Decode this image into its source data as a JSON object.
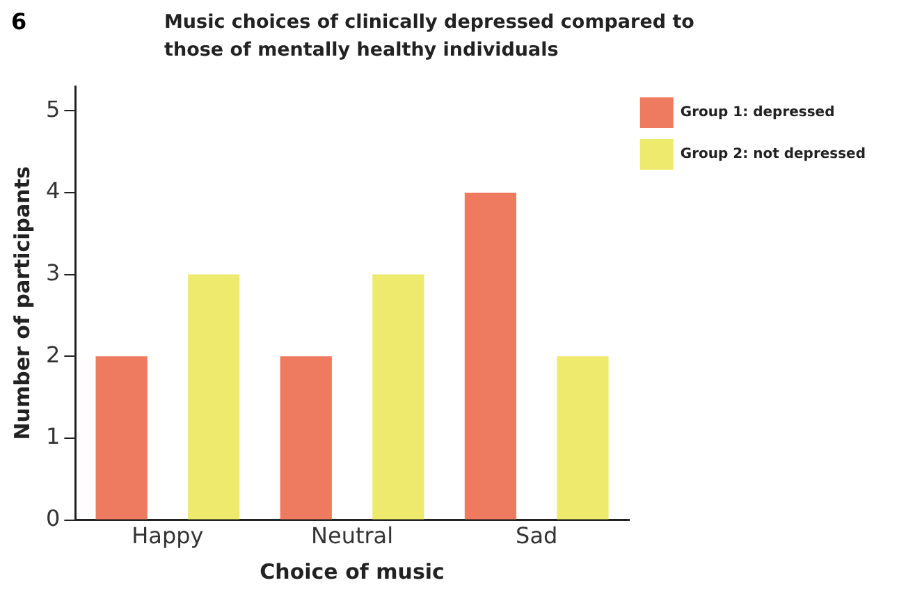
{
  "chart_data": {
    "type": "bar",
    "title": "Music choices of clinically depressed compared to those of mentally healthy individuals",
    "xlabel": "Choice of music",
    "ylabel": "Number of participants",
    "annotations": [
      "6"
    ],
    "categories": [
      "Happy",
      "Neutral",
      "Sad"
    ],
    "series": [
      {
        "name": "Group 1: depressed",
        "color": "#ee7a60",
        "values": [
          2,
          2,
          4
        ]
      },
      {
        "name": "Group 2: not depressed",
        "color": "#eeea6e",
        "values": [
          3,
          3,
          2
        ]
      }
    ],
    "ylim": [
      0,
      5.3
    ],
    "yticks": [
      0,
      1,
      2,
      3,
      4,
      5
    ],
    "grid": false,
    "legend": "top right"
  }
}
